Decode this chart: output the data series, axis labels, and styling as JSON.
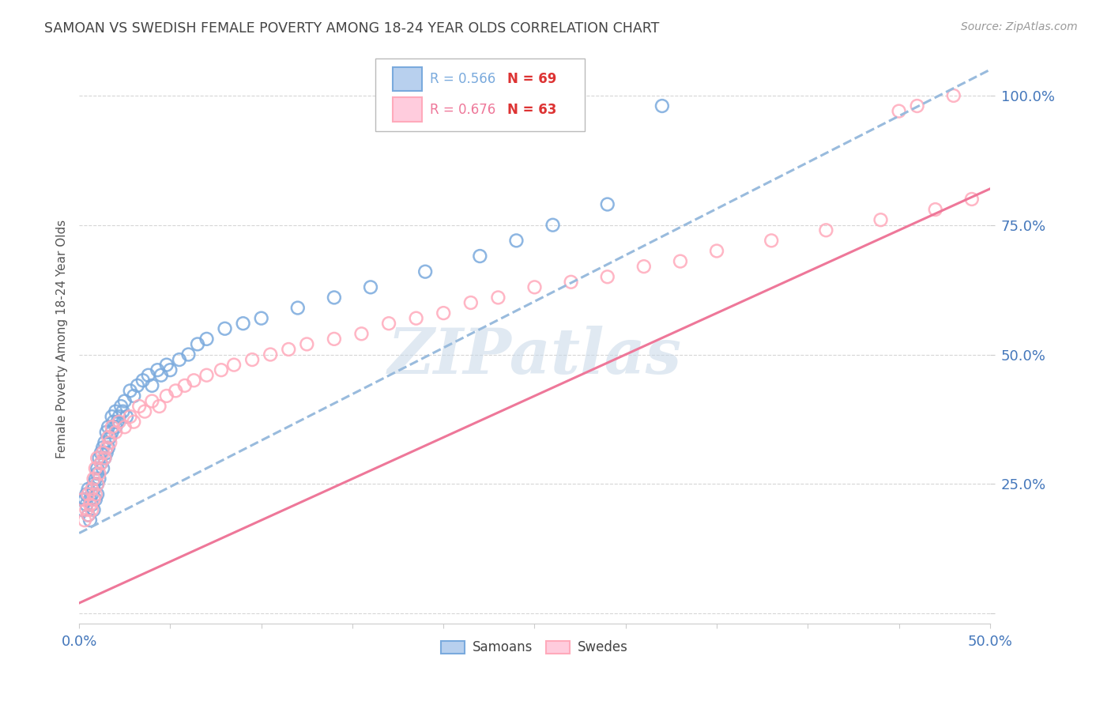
{
  "title": "SAMOAN VS SWEDISH FEMALE POVERTY AMONG 18-24 YEAR OLDS CORRELATION CHART",
  "source": "Source: ZipAtlas.com",
  "ylabel": "Female Poverty Among 18-24 Year Olds",
  "xlim": [
    0.0,
    0.5
  ],
  "ylim": [
    -0.02,
    1.08
  ],
  "grid_color": "#cccccc",
  "background_color": "#ffffff",
  "watermark": "ZIPatlas",
  "watermark_color": "#c8d8e8",
  "color_samoan": "#7aaadd",
  "color_swedish": "#ffaabb",
  "color_line_samoan": "#99bbdd",
  "color_line_swedish": "#ee7799",
  "tick_label_color": "#4477bb",
  "title_color": "#444444",
  "samoan_x": [
    0.002,
    0.003,
    0.004,
    0.004,
    0.005,
    0.005,
    0.006,
    0.006,
    0.007,
    0.007,
    0.008,
    0.008,
    0.008,
    0.009,
    0.009,
    0.01,
    0.01,
    0.01,
    0.01,
    0.011,
    0.011,
    0.012,
    0.012,
    0.013,
    0.013,
    0.014,
    0.014,
    0.015,
    0.015,
    0.016,
    0.016,
    0.017,
    0.018,
    0.018,
    0.019,
    0.02,
    0.02,
    0.021,
    0.022,
    0.023,
    0.024,
    0.025,
    0.026,
    0.028,
    0.03,
    0.032,
    0.035,
    0.038,
    0.04,
    0.043,
    0.045,
    0.048,
    0.05,
    0.055,
    0.06,
    0.065,
    0.07,
    0.08,
    0.09,
    0.1,
    0.12,
    0.14,
    0.16,
    0.19,
    0.22,
    0.24,
    0.26,
    0.29,
    0.32
  ],
  "samoan_y": [
    0.2,
    0.22,
    0.21,
    0.23,
    0.19,
    0.24,
    0.18,
    0.22,
    0.21,
    0.23,
    0.2,
    0.24,
    0.25,
    0.22,
    0.26,
    0.23,
    0.25,
    0.27,
    0.28,
    0.26,
    0.3,
    0.29,
    0.31,
    0.28,
    0.32,
    0.3,
    0.33,
    0.31,
    0.35,
    0.32,
    0.36,
    0.34,
    0.35,
    0.38,
    0.37,
    0.36,
    0.39,
    0.37,
    0.38,
    0.4,
    0.39,
    0.41,
    0.38,
    0.43,
    0.42,
    0.44,
    0.45,
    0.46,
    0.44,
    0.47,
    0.46,
    0.48,
    0.47,
    0.49,
    0.5,
    0.52,
    0.53,
    0.55,
    0.56,
    0.57,
    0.59,
    0.61,
    0.63,
    0.66,
    0.69,
    0.72,
    0.75,
    0.79,
    0.98
  ],
  "swedish_x": [
    0.002,
    0.003,
    0.004,
    0.005,
    0.005,
    0.006,
    0.007,
    0.007,
    0.008,
    0.008,
    0.009,
    0.009,
    0.01,
    0.01,
    0.011,
    0.012,
    0.013,
    0.014,
    0.015,
    0.016,
    0.017,
    0.018,
    0.02,
    0.022,
    0.025,
    0.028,
    0.03,
    0.033,
    0.036,
    0.04,
    0.044,
    0.048,
    0.053,
    0.058,
    0.063,
    0.07,
    0.078,
    0.085,
    0.095,
    0.105,
    0.115,
    0.125,
    0.14,
    0.155,
    0.17,
    0.185,
    0.2,
    0.215,
    0.23,
    0.25,
    0.27,
    0.29,
    0.31,
    0.33,
    0.35,
    0.38,
    0.41,
    0.44,
    0.47,
    0.49,
    0.45,
    0.46,
    0.48
  ],
  "swedish_y": [
    0.22,
    0.18,
    0.2,
    0.19,
    0.23,
    0.21,
    0.2,
    0.24,
    0.22,
    0.26,
    0.23,
    0.28,
    0.25,
    0.3,
    0.27,
    0.29,
    0.31,
    0.3,
    0.32,
    0.34,
    0.33,
    0.36,
    0.35,
    0.37,
    0.36,
    0.38,
    0.37,
    0.4,
    0.39,
    0.41,
    0.4,
    0.42,
    0.43,
    0.44,
    0.45,
    0.46,
    0.47,
    0.48,
    0.49,
    0.5,
    0.51,
    0.52,
    0.53,
    0.54,
    0.56,
    0.57,
    0.58,
    0.6,
    0.61,
    0.63,
    0.64,
    0.65,
    0.67,
    0.68,
    0.7,
    0.72,
    0.74,
    0.76,
    0.78,
    0.8,
    0.97,
    0.98,
    1.0
  ],
  "samoan_line_x": [
    0.0,
    0.5
  ],
  "samoan_line_y": [
    0.155,
    1.05
  ],
  "swedish_line_x": [
    0.0,
    0.5
  ],
  "swedish_line_y": [
    0.02,
    0.82
  ]
}
